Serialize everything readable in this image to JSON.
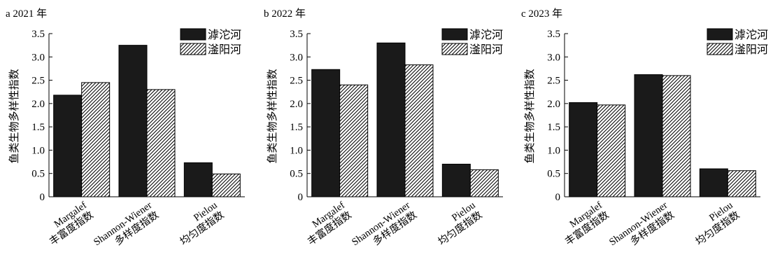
{
  "colors": {
    "series_1_fill": "#1a1a1a",
    "series_2_fill": "hatched #ffffff/#000000",
    "axis": "#000000"
  },
  "chart_data": [
    {
      "type": "bar",
      "title": "a 2021 年",
      "ylabel": "鱼类生物多样性指数",
      "ylim": [
        0,
        3.5
      ],
      "yticks": [
        "0",
        "0.5",
        "1.0",
        "1.5",
        "2.0",
        "2.5",
        "3.0",
        "3.5"
      ],
      "categories": [
        {
          "line1": "Margalef",
          "line2": "丰富度指数"
        },
        {
          "line1": "Shannon-Wiener",
          "line2": "多样度指数"
        },
        {
          "line1": "Pielou",
          "line2": "均匀度指数"
        }
      ],
      "series": [
        {
          "name": "滹沱河",
          "values": [
            2.18,
            3.25,
            0.73
          ]
        },
        {
          "name": "滏阳河",
          "values": [
            2.45,
            2.3,
            0.49
          ]
        }
      ],
      "legend": "top-right",
      "grid": false
    },
    {
      "type": "bar",
      "title": "b 2022 年",
      "ylabel": "鱼类生物多样性指数",
      "ylim": [
        0,
        3.5
      ],
      "yticks": [
        "0",
        "0.5",
        "1.0",
        "1.5",
        "2.0",
        "2.5",
        "3.0",
        "3.5"
      ],
      "categories": [
        {
          "line1": "Margalef",
          "line2": "丰富度指数"
        },
        {
          "line1": "Shannon-Wiener",
          "line2": "多样度指数"
        },
        {
          "line1": "Pielou",
          "line2": "均匀度指数"
        }
      ],
      "series": [
        {
          "name": "滹沱河",
          "values": [
            2.73,
            3.3,
            0.7
          ]
        },
        {
          "name": "滏阳河",
          "values": [
            2.4,
            2.83,
            0.58
          ]
        }
      ],
      "legend": "top-right",
      "grid": false
    },
    {
      "type": "bar",
      "title": "c 2023 年",
      "ylabel": "鱼类生物多样性指数",
      "ylim": [
        0,
        3.5
      ],
      "yticks": [
        "0",
        "0.5",
        "1.0",
        "1.5",
        "2.0",
        "2.5",
        "3.0",
        "3.5"
      ],
      "categories": [
        {
          "line1": "Margalef",
          "line2": "丰富度指数"
        },
        {
          "line1": "Shannon-Wiener",
          "line2": "多样度指数"
        },
        {
          "line1": "Pielou",
          "line2": "均匀度指数"
        }
      ],
      "series": [
        {
          "name": "滹沱河",
          "values": [
            2.02,
            2.62,
            0.6
          ]
        },
        {
          "name": "滏阳河",
          "values": [
            1.97,
            2.6,
            0.56
          ]
        }
      ],
      "legend": "top-right",
      "grid": false
    }
  ]
}
